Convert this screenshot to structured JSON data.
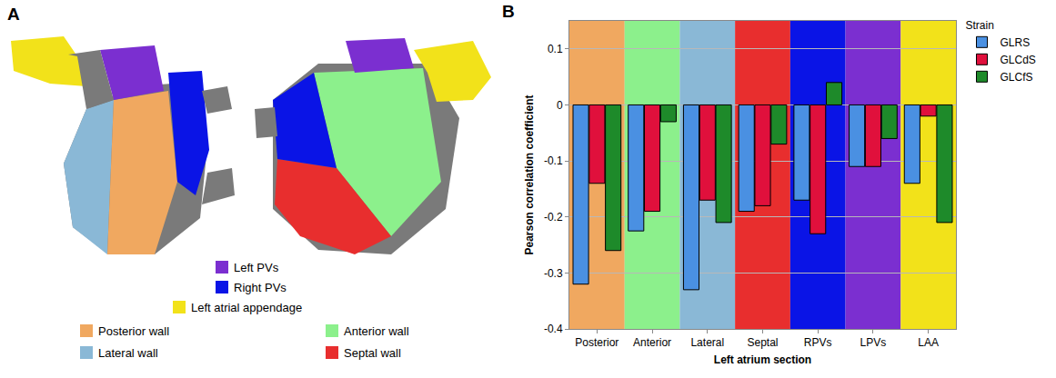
{
  "panel_labels": [
    "A",
    "B"
  ],
  "diagram": {
    "legend": [
      {
        "label": "Left PVs",
        "color": "#7b2fd0"
      },
      {
        "label": "Right PVs",
        "color": "#0a14e6"
      },
      {
        "label": "Left atrial appendage",
        "color": "#f2e21a"
      },
      {
        "label": "Posterior wall",
        "color": "#f0a860"
      },
      {
        "label": "Lateral wall",
        "color": "#8ab8d6"
      },
      {
        "label": "Anterior wall",
        "color": "#8cf08c"
      },
      {
        "label": "Septal wall",
        "color": "#e82e2e"
      }
    ]
  },
  "chart_data": {
    "type": "bar",
    "xlabel": "Left atrium section",
    "ylabel": "Pearson correlation coefficient",
    "legend_title": "Strain",
    "legend": "right",
    "grid": true,
    "categories": [
      "Posterior",
      "Anterior",
      "Lateral",
      "Septal",
      "RPVs",
      "LPVs",
      "LAA"
    ],
    "series": [
      {
        "name": "GLRS",
        "color": "#4a90e2",
        "values": [
          -0.32,
          -0.225,
          -0.33,
          -0.19,
          -0.17,
          -0.11,
          -0.14
        ]
      },
      {
        "name": "GLCdS",
        "color": "#e0103c",
        "values": [
          -0.14,
          -0.19,
          -0.17,
          -0.18,
          -0.23,
          -0.11,
          -0.02
        ]
      },
      {
        "name": "GLCfS",
        "color": "#1e8a2a",
        "values": [
          -0.26,
          -0.03,
          -0.21,
          -0.07,
          0.04,
          -0.06,
          -0.21
        ]
      }
    ],
    "ylim": [
      -0.4,
      0.15
    ],
    "yticks": [
      -0.4,
      -0.3,
      -0.2,
      -0.1,
      0,
      0.1
    ]
  }
}
